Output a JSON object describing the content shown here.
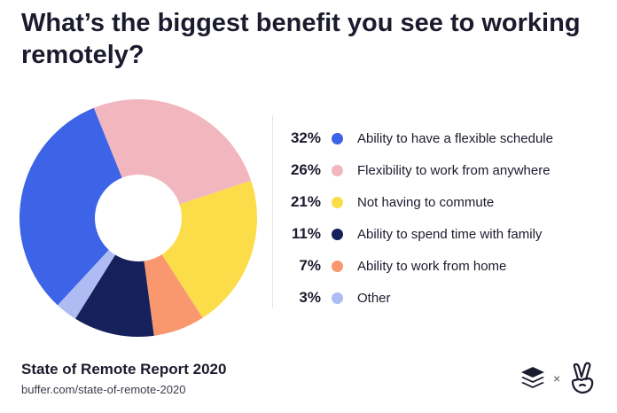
{
  "title": "What’s the biggest benefit you see to working remotely?",
  "chart_data": {
    "type": "pie",
    "variant": "donut",
    "title": "What’s the biggest benefit you see to working remotely?",
    "legend_position": "right",
    "slices": [
      {
        "label": "Ability to have a flexible schedule",
        "value": 32,
        "value_label": "32%",
        "color": "#3d63e6"
      },
      {
        "label": "Flexibility to work from anywhere",
        "value": 26,
        "value_label": "26%",
        "color": "#f2b6bf"
      },
      {
        "label": "Not having to commute",
        "value": 21,
        "value_label": "21%",
        "color": "#fbdd4a"
      },
      {
        "label": "Ability to spend time with family",
        "value": 11,
        "value_label": "11%",
        "color": "#16205a"
      },
      {
        "label": "Ability to work from home",
        "value": 7,
        "value_label": "7%",
        "color": "#f9976f"
      },
      {
        "label": "Other",
        "value": 3,
        "value_label": "3%",
        "color": "#aebcf3"
      }
    ]
  },
  "footer": {
    "report_title": "State of Remote Report 2020",
    "url": "buffer.com/state-of-remote-2020",
    "times_symbol": "×"
  },
  "logos": {
    "left_icon": "buffer-logo-icon",
    "right_icon": "angellist-peace-hand-icon"
  }
}
